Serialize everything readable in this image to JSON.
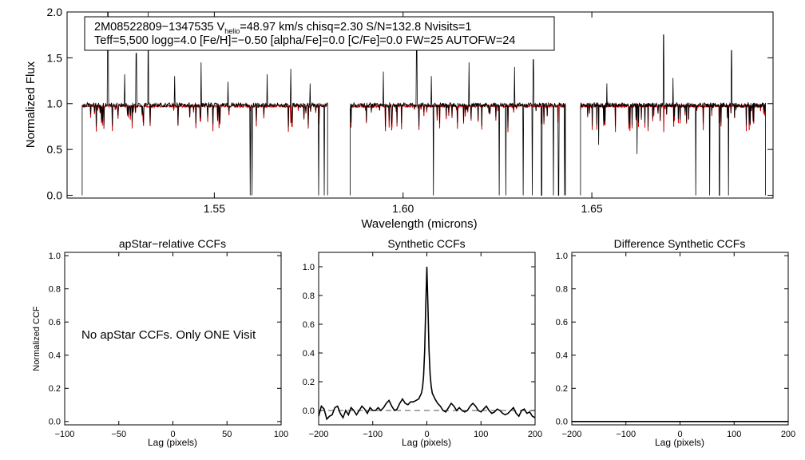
{
  "chart_data": [
    {
      "type": "line",
      "panel": "spectrum",
      "info_line1": "2M08522809−1347535  V",
      "info_vhelio_sub": "helio",
      "info_vhelio_rest": "=48.97 km/s  chisq=2.30  S/N=132.8  Nvisits=1",
      "info_line2": "Teff=5,500 logg=4.0 [Fe/H]=−0.50 [alpha/Fe]=0.0 [C/Fe]=0.0 FW=25 AUTOFW=24",
      "xlabel": "Wavelength (microns)",
      "ylabel": "Normalized Flux",
      "xlim": [
        1.511,
        1.698
      ],
      "ylim": [
        -0.03,
        2.0
      ],
      "xticks": [
        "1.55",
        "1.60",
        "1.65"
      ],
      "xtick_values": [
        1.55,
        1.6,
        1.65
      ],
      "yticks": [
        "0.0",
        "0.5",
        "1.0",
        "1.5",
        "2.0"
      ],
      "ytick_values": [
        0.0,
        0.5,
        1.0,
        1.5,
        2.0
      ],
      "chips": [
        [
          1.515,
          1.58
        ],
        [
          1.586,
          1.643
        ],
        [
          1.647,
          1.696
        ]
      ],
      "colors": {
        "observed": "#000000",
        "model": "#cc0000"
      },
      "emission_spikes": [
        {
          "x": 1.5218,
          "y": 2.0
        },
        {
          "x": 1.5262,
          "y": 1.32
        },
        {
          "x": 1.5293,
          "y": 1.55
        },
        {
          "x": 1.5325,
          "y": 2.0
        },
        {
          "x": 1.5395,
          "y": 1.3
        },
        {
          "x": 1.5465,
          "y": 1.45
        },
        {
          "x": 1.5536,
          "y": 1.24
        },
        {
          "x": 1.564,
          "y": 1.32
        },
        {
          "x": 1.5702,
          "y": 1.38
        },
        {
          "x": 1.5754,
          "y": 1.22
        },
        {
          "x": 1.5948,
          "y": 1.35
        },
        {
          "x": 1.6036,
          "y": 1.72
        },
        {
          "x": 1.6075,
          "y": 1.3
        },
        {
          "x": 1.6175,
          "y": 1.45
        },
        {
          "x": 1.6295,
          "y": 1.4
        },
        {
          "x": 1.6345,
          "y": 1.48
        },
        {
          "x": 1.654,
          "y": 1.22
        },
        {
          "x": 1.669,
          "y": 1.75
        },
        {
          "x": 1.6715,
          "y": 1.28
        },
        {
          "x": 1.687,
          "y": 1.58
        }
      ],
      "absorption_drops": [
        {
          "x": 1.5595,
          "y": 0.0
        },
        {
          "x": 1.56,
          "y": 0.0
        },
        {
          "x": 1.5776,
          "y": 0.0
        },
        {
          "x": 1.5791,
          "y": 0.0
        },
        {
          "x": 1.608,
          "y": 0.0
        },
        {
          "x": 1.6255,
          "y": 0.0
        },
        {
          "x": 1.6272,
          "y": 0.0
        },
        {
          "x": 1.6318,
          "y": 0.0
        },
        {
          "x": 1.6342,
          "y": 0.0
        },
        {
          "x": 1.6367,
          "y": 0.0
        },
        {
          "x": 1.6398,
          "y": 0.0
        },
        {
          "x": 1.6412,
          "y": 0.0
        },
        {
          "x": 1.6428,
          "y": 0.0
        },
        {
          "x": 1.6518,
          "y": 0.55
        },
        {
          "x": 1.662,
          "y": 0.45
        },
        {
          "x": 1.6775,
          "y": 0.0
        },
        {
          "x": 1.6812,
          "y": 0.0
        },
        {
          "x": 1.6838,
          "y": 0.0
        },
        {
          "x": 1.6862,
          "y": 0.0
        }
      ]
    },
    {
      "type": "line",
      "panel": "apstar",
      "title": "apStar−relative CCFs",
      "xlabel": "Lag (pixels)",
      "ylabel": "Normalized CCF",
      "xlim": [
        -100,
        100
      ],
      "ylim": [
        -0.02,
        1.02
      ],
      "xticks": [
        "−100",
        "−50",
        "0",
        "50",
        "100"
      ],
      "xtick_values": [
        -100,
        -50,
        0,
        50,
        100
      ],
      "yticks": [
        "0.0",
        "0.2",
        "0.4",
        "0.6",
        "0.8",
        "1.0"
      ],
      "ytick_values": [
        0.0,
        0.2,
        0.4,
        0.6,
        0.8,
        1.0
      ],
      "message": "No apStar CCFs.  Only ONE Visit"
    },
    {
      "type": "line",
      "panel": "synthetic",
      "title": "Synthetic CCFs",
      "xlabel": "Lag (pixels)",
      "xlim": [
        -200,
        200
      ],
      "ylim": [
        -0.1,
        1.1
      ],
      "xticks": [
        "−200",
        "−100",
        "0",
        "100",
        "200"
      ],
      "xtick_values": [
        -200,
        -100,
        0,
        100,
        200
      ],
      "yticks": [
        "0.0",
        "0.2",
        "0.4",
        "0.6",
        "0.8",
        "1.0"
      ],
      "ytick_values": [
        0.0,
        0.2,
        0.4,
        0.6,
        0.8,
        1.0
      ],
      "reference_line_y": 0.0,
      "x": [
        -200,
        -195,
        -190,
        -185,
        -180,
        -175,
        -170,
        -165,
        -160,
        -155,
        -150,
        -145,
        -140,
        -135,
        -130,
        -125,
        -120,
        -115,
        -110,
        -105,
        -100,
        -95,
        -90,
        -85,
        -80,
        -75,
        -70,
        -65,
        -60,
        -55,
        -50,
        -45,
        -40,
        -35,
        -30,
        -25,
        -20,
        -15,
        -10,
        -8,
        -6,
        -4,
        -2,
        0,
        2,
        4,
        6,
        8,
        10,
        15,
        20,
        25,
        30,
        35,
        40,
        45,
        50,
        55,
        60,
        65,
        70,
        75,
        80,
        85,
        90,
        95,
        100,
        105,
        110,
        115,
        120,
        125,
        130,
        135,
        140,
        145,
        150,
        155,
        160,
        165,
        170,
        175,
        180,
        185,
        190,
        195,
        200
      ],
      "y": [
        -0.04,
        0.03,
        0.01,
        -0.06,
        -0.04,
        -0.03,
        0.02,
        0.03,
        -0.02,
        -0.05,
        0.0,
        -0.03,
        0.02,
        0.0,
        -0.03,
        0.0,
        0.03,
        0.01,
        -0.02,
        0.02,
        0.0,
        0.0,
        0.02,
        0.0,
        0.02,
        0.05,
        0.07,
        0.03,
        0.0,
        0.01,
        0.05,
        0.08,
        0.05,
        0.04,
        0.06,
        0.06,
        0.07,
        0.08,
        0.12,
        0.16,
        0.24,
        0.42,
        0.72,
        1.0,
        0.72,
        0.42,
        0.25,
        0.17,
        0.12,
        0.08,
        0.05,
        0.03,
        0.0,
        -0.01,
        0.02,
        0.05,
        0.03,
        0.0,
        0.02,
        0.0,
        -0.01,
        0.0,
        0.03,
        0.05,
        0.03,
        0.0,
        -0.01,
        0.01,
        0.03,
        0.0,
        -0.02,
        -0.01,
        0.01,
        0.0,
        -0.02,
        -0.03,
        -0.02,
        0.0,
        0.02,
        -0.02,
        -0.04,
        0.0,
        0.01,
        -0.02,
        -0.01,
        -0.04,
        -0.05
      ]
    },
    {
      "type": "line",
      "panel": "difference",
      "title": "Difference Synthetic CCFs",
      "xlabel": "Lag (pixels)",
      "xlim": [
        -200,
        200
      ],
      "ylim": [
        -0.02,
        1.02
      ],
      "xticks": [
        "−200",
        "−100",
        "0",
        "100",
        "200"
      ],
      "xtick_values": [
        -200,
        -100,
        0,
        100,
        200
      ],
      "yticks": [
        "0.0",
        "0.2",
        "0.4",
        "0.6",
        "0.8",
        "1.0"
      ],
      "ytick_values": [
        0.0,
        0.2,
        0.4,
        0.6,
        0.8,
        1.0
      ],
      "x": [
        -200,
        200
      ],
      "y": [
        0.0,
        0.0
      ]
    }
  ]
}
